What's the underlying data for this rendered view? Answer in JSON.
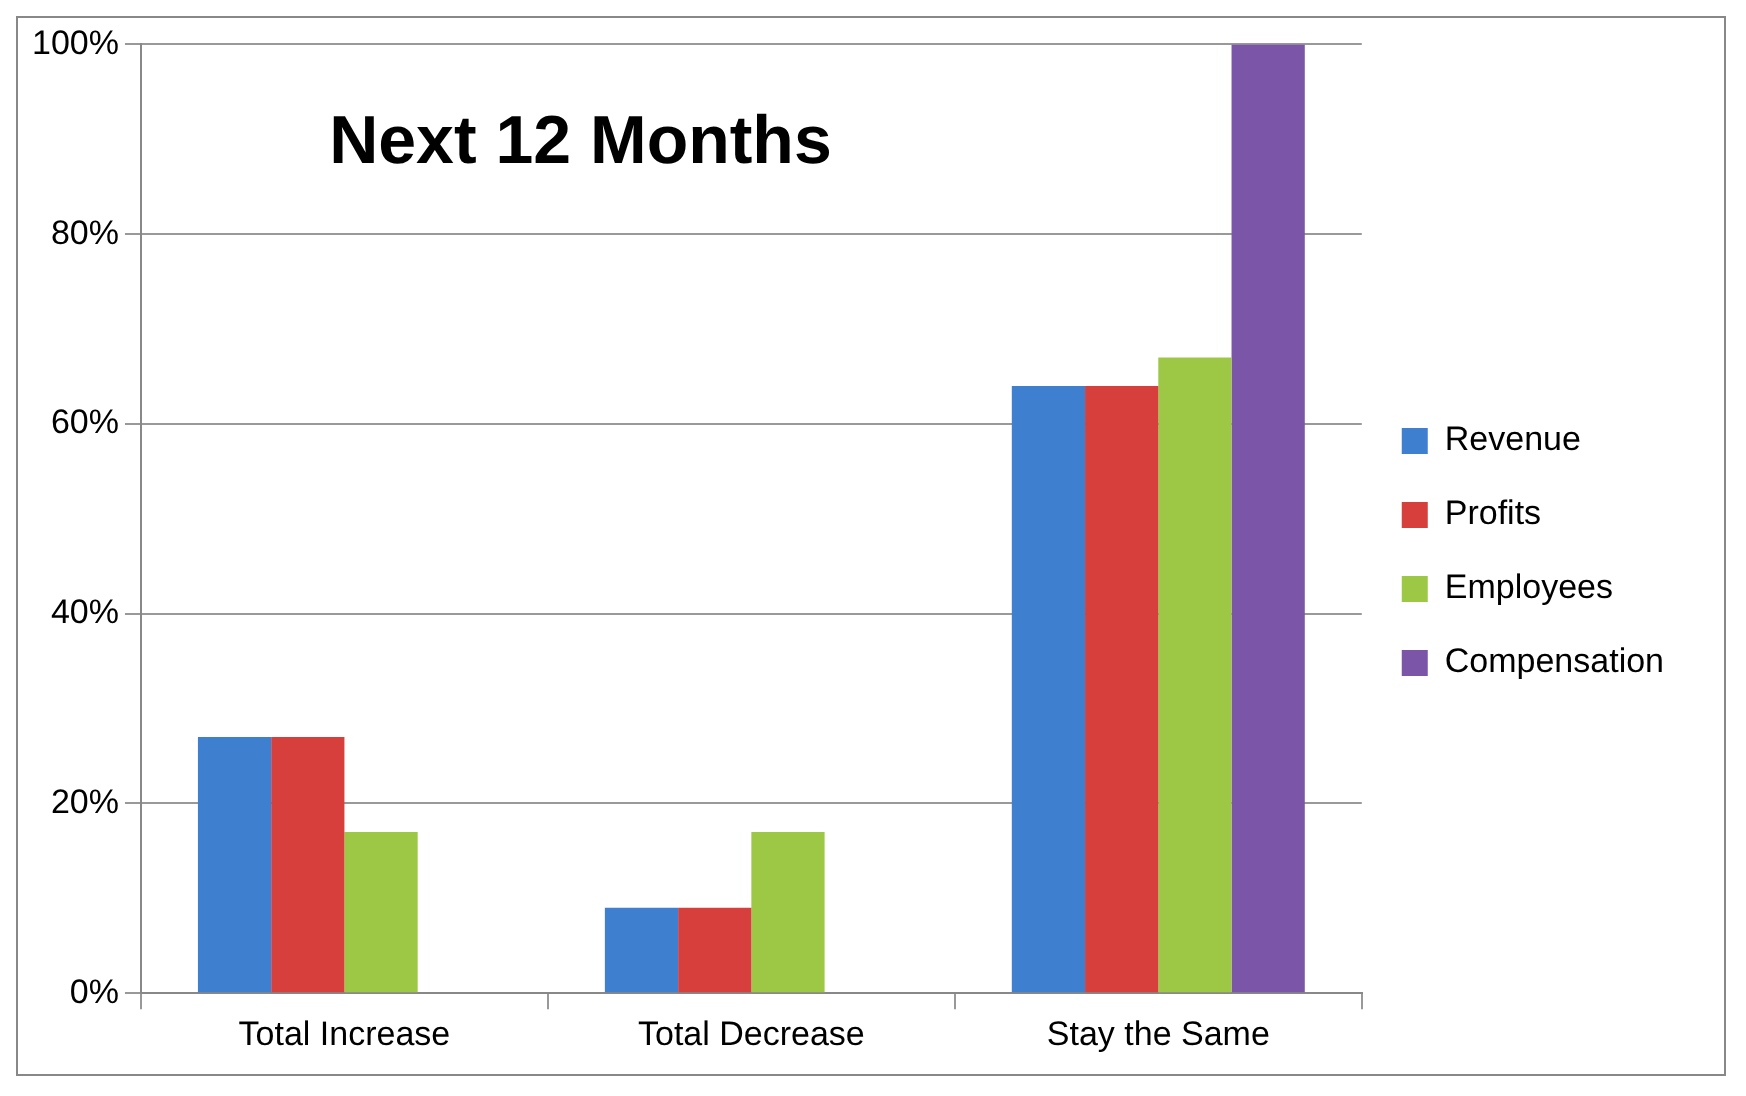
{
  "chart_data": {
    "type": "bar",
    "title": "Next 12 Months",
    "categories": [
      "Total Increase",
      "Total Decrease",
      "Stay the Same"
    ],
    "series": [
      {
        "name": "Revenue",
        "color": "#3f7fcf",
        "values": [
          27,
          9,
          64
        ]
      },
      {
        "name": "Profits",
        "color": "#d63f3c",
        "values": [
          27,
          9,
          64
        ]
      },
      {
        "name": "Employees",
        "color": "#9cc846",
        "values": [
          17,
          17,
          67
        ]
      },
      {
        "name": "Compensation",
        "color": "#7a55a8",
        "values": [
          null,
          null,
          100
        ]
      }
    ],
    "ylim": [
      0,
      100
    ],
    "yticks": [
      {
        "value": 0,
        "label": "0%"
      },
      {
        "value": 20,
        "label": "20%"
      },
      {
        "value": 40,
        "label": "40%"
      },
      {
        "value": 60,
        "label": "60%"
      },
      {
        "value": 80,
        "label": "80%"
      },
      {
        "value": 100,
        "label": "100%"
      }
    ],
    "grid": "y",
    "legend": "right"
  }
}
